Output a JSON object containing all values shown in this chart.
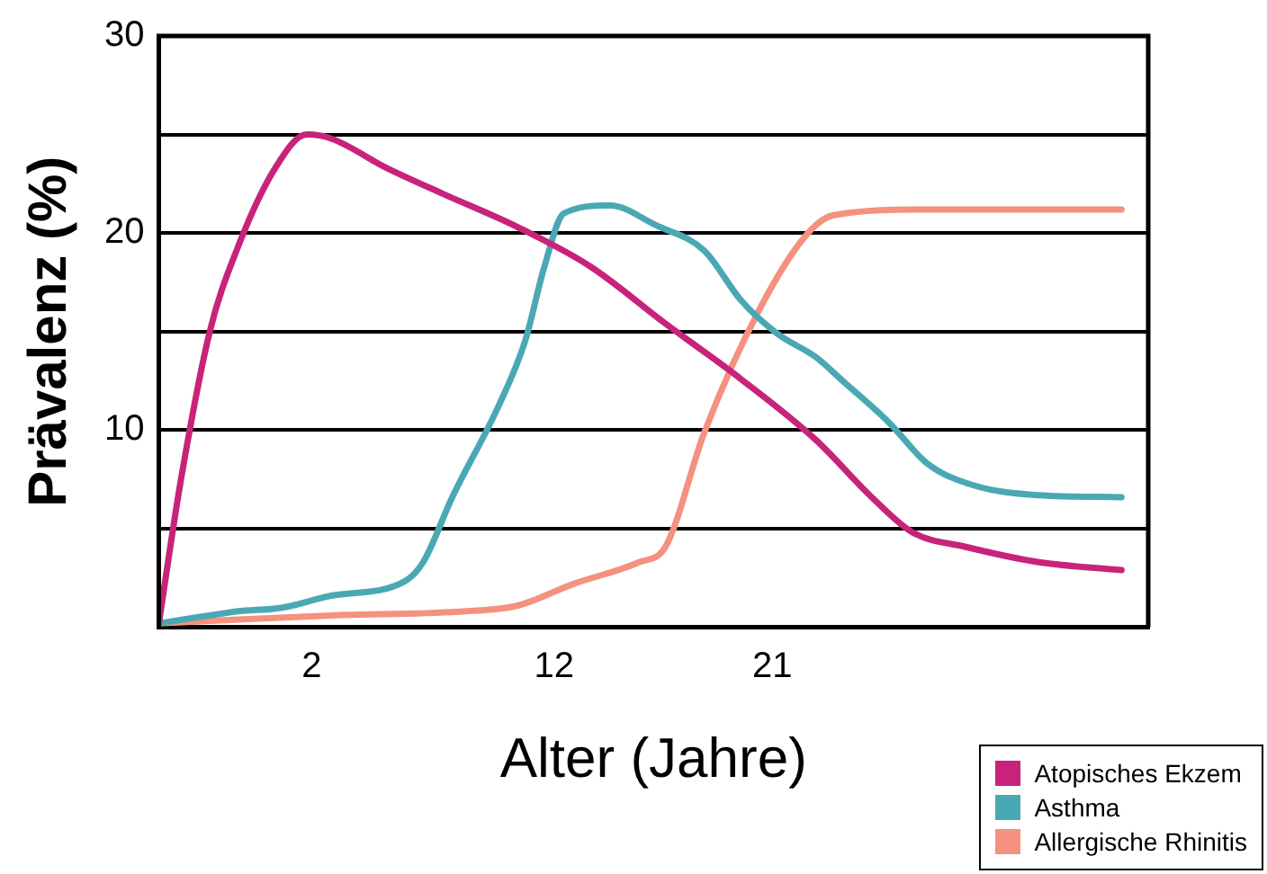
{
  "chart_data": {
    "type": "line",
    "xlabel": "Alter (Jahre)",
    "ylabel": "Prävalenz (%)",
    "xlim": [
      -4.3,
      36.5
    ],
    "xticks": [
      2,
      12,
      21
    ],
    "ylim": [
      0,
      30
    ],
    "yticks": [
      {
        "value": 0,
        "label": null
      },
      {
        "value": 5,
        "label": null
      },
      10,
      {
        "value": 15,
        "label": null
      },
      20,
      {
        "value": 25,
        "label": null
      },
      30
    ],
    "grid": "y",
    "legend": "bottom right",
    "marker": "none",
    "line_style": "solid",
    "series": [
      {
        "name": "Atopisches Ekzem",
        "color": "#c8237a",
        "x": [
          -4.3,
          -3.4,
          -2.2,
          -1.1,
          0.5,
          1.8,
          2.8,
          5.1,
          7.4,
          10.5,
          13.5,
          16.6,
          19.7,
          22.8,
          25.1,
          26.8,
          28.9,
          32,
          35.4
        ],
        "values": [
          0.2,
          7.4,
          15,
          19.1,
          23.3,
          25,
          24.8,
          23.3,
          22,
          20.3,
          18.3,
          15.4,
          12.6,
          9.5,
          6.6,
          4.8,
          4.1,
          3.3,
          2.9
        ]
      },
      {
        "name": "Asthma",
        "color": "#4aa8b4",
        "x": [
          -4.3,
          -1.1,
          0.8,
          2.8,
          5.8,
          6.6,
          7.8,
          9.7,
          10.8,
          11.6,
          12.4,
          14.3,
          16.2,
          18.2,
          19.7,
          21.2,
          22.8,
          23.9,
          25.8,
          27.4,
          29.3,
          32,
          35.4
        ],
        "values": [
          0.2,
          0.8,
          1.0,
          1.6,
          2.3,
          3.3,
          6.6,
          11.2,
          14.5,
          18.3,
          21,
          21.4,
          20.4,
          19.1,
          16.6,
          14.9,
          13.7,
          12.5,
          10.4,
          8.3,
          7.2,
          6.7,
          6.6
        ]
      },
      {
        "name": "Allergische Rhinitis",
        "color": "#f4917f",
        "x": [
          -4.3,
          2.8,
          8.2,
          10.5,
          12.8,
          15.5,
          16.6,
          18.2,
          20.5,
          22.4,
          23.5,
          27.4,
          35.4
        ],
        "values": [
          0.2,
          0.6,
          0.8,
          1.1,
          2.2,
          3.3,
          4.1,
          9.9,
          16.2,
          19.9,
          20.9,
          21.2,
          21.2
        ]
      }
    ]
  }
}
